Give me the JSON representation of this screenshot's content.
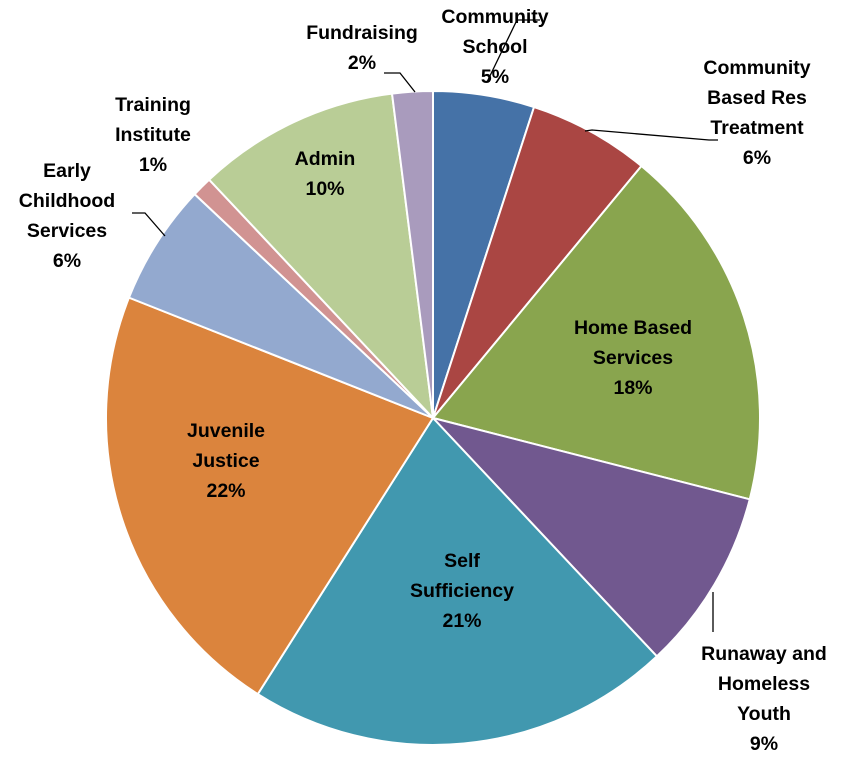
{
  "chart_data": {
    "type": "pie",
    "title": "",
    "start_angle_deg": 0,
    "direction": "clockwise",
    "legend": "none",
    "slices": [
      {
        "label": [
          "Community",
          "School"
        ],
        "pct_label": "5%",
        "value": 5,
        "color": "#4572A7"
      },
      {
        "label": [
          "Community",
          "Based Res",
          "Treatment"
        ],
        "pct_label": "6%",
        "value": 6,
        "color": "#AA4643"
      },
      {
        "label": [
          "Home Based",
          "Services"
        ],
        "pct_label": "18%",
        "value": 18,
        "color": "#89A54E"
      },
      {
        "label": [
          "Runaway and",
          "Homeless",
          "Youth"
        ],
        "pct_label": "9%",
        "value": 9,
        "color": "#71588F"
      },
      {
        "label": [
          "Self",
          "Sufficiency"
        ],
        "pct_label": "21%",
        "value": 21,
        "color": "#4198AF"
      },
      {
        "label": [
          "Juvenile",
          "Justice"
        ],
        "pct_label": "22%",
        "value": 22,
        "color": "#DB843D"
      },
      {
        "label": [
          "Early",
          "Childhood",
          "Services"
        ],
        "pct_label": "6%",
        "value": 6,
        "color": "#93A9CF"
      },
      {
        "label": [
          "Training",
          "Institute"
        ],
        "pct_label": "1%",
        "value": 1,
        "color": "#D19392"
      },
      {
        "label": [
          "Admin"
        ],
        "pct_label": "10%",
        "value": 10,
        "color": "#B9CD96"
      },
      {
        "label": [
          "Fundraising"
        ],
        "pct_label": "2%",
        "value": 2,
        "color": "#A99BBD"
      }
    ]
  }
}
